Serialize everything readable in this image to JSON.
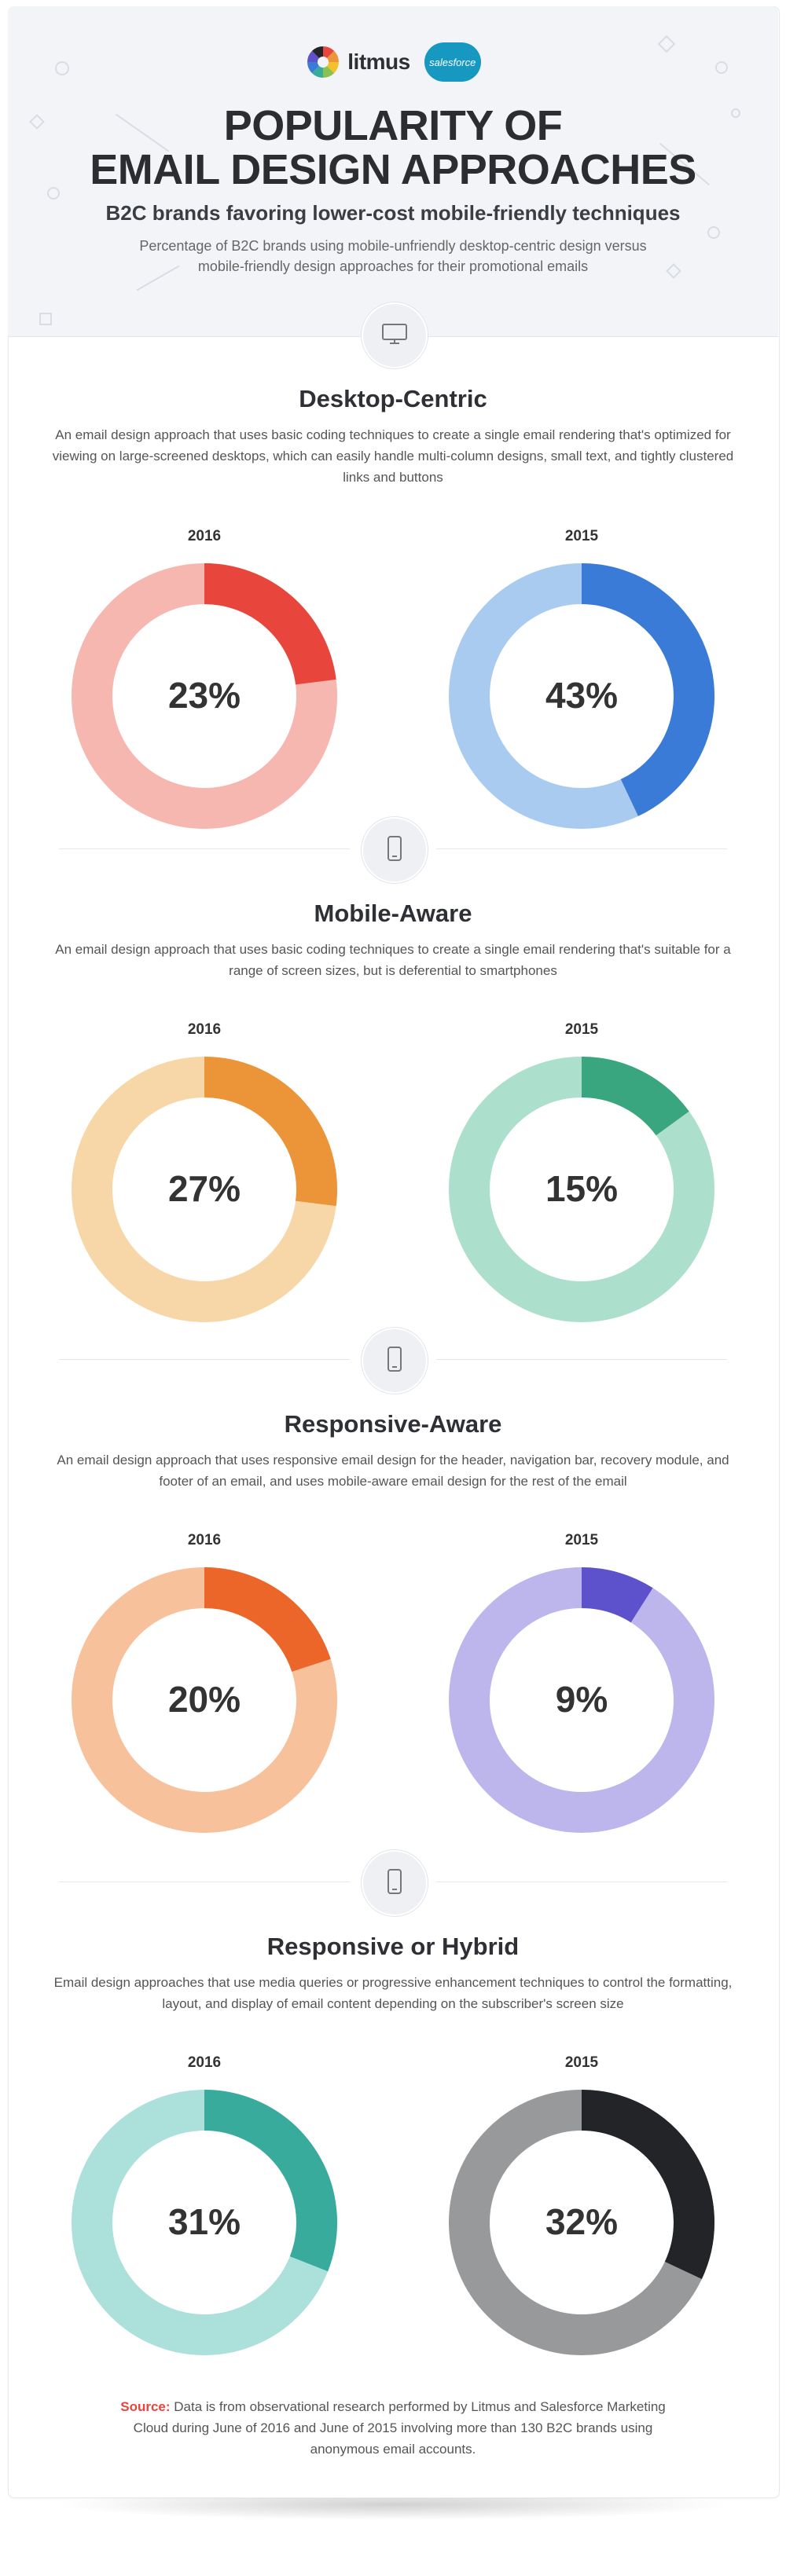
{
  "header": {
    "litmus_label": "litmus",
    "salesforce_label": "salesforce",
    "title_line1": "POPULARITY OF",
    "title_line2": "EMAIL DESIGN APPROACHES",
    "subtitle": "B2C brands favoring lower-cost mobile-friendly techniques",
    "description": "Percentage of B2C brands using mobile-unfriendly desktop-centric design versus mobile-friendly design approaches for their promotional emails"
  },
  "sections": [
    {
      "title": "Desktop-Centric",
      "icon": "desktop-icon",
      "description": "An email design approach that uses basic coding techniques to create a single email rendering that's optimized for viewing on large-screened desktops, which can easily handle multi-column designs, small text, and tightly clustered links and buttons",
      "left": {
        "year": "2016",
        "label": "23%",
        "value": 23,
        "color": "#e8453c",
        "track": "#f7b7b1"
      },
      "right": {
        "year": "2015",
        "label": "43%",
        "value": 43,
        "color": "#3a7bd8",
        "track": "#aacbf0"
      }
    },
    {
      "title": "Mobile-Aware",
      "icon": "mobile-icon",
      "description": "An email design approach that uses basic coding techniques to create a single email rendering that's suitable for a range of screen sizes, but is deferential to smartphones",
      "left": {
        "year": "2016",
        "label": "27%",
        "value": 27,
        "color": "#ec9438",
        "track": "#f7d7a8"
      },
      "right": {
        "year": "2015",
        "label": "15%",
        "value": 15,
        "color": "#3aa67f",
        "track": "#addfcd"
      }
    },
    {
      "title": "Responsive-Aware",
      "icon": "mobile-icon",
      "description": "An email design approach that uses responsive email design for the header, navigation bar, recovery module, and footer of an email, and uses mobile-aware email design for the rest of the email",
      "left": {
        "year": "2016",
        "label": "20%",
        "value": 20,
        "color": "#ec6529",
        "track": "#f7c19c"
      },
      "right": {
        "year": "2015",
        "label": "9%",
        "value": 9,
        "color": "#5d51cc",
        "track": "#bcb6ec"
      }
    },
    {
      "title": "Responsive or Hybrid",
      "icon": "mobile-icon",
      "description": "Email design approaches that use media queries or progressive enhancement techniques to control the formatting, layout, and display of email content depending on the subscriber's screen size",
      "left": {
        "year": "2016",
        "label": "31%",
        "value": 31,
        "color": "#39ab9c",
        "track": "#ace0db"
      },
      "right": {
        "year": "2015",
        "label": "32%",
        "value": 32,
        "color": "#222427",
        "track": "#97999b"
      }
    }
  ],
  "source": {
    "label": "Source:",
    "text": " Data is from observational research performed by Litmus and Salesforce Marketing Cloud during June of 2016 and June of 2015 involving more than 130 B2C brands using anonymous email accounts."
  },
  "chart_data": [
    {
      "type": "pie",
      "title": "Desktop-Centric",
      "categories": [
        "2016",
        "2015"
      ],
      "values": [
        23,
        43
      ]
    },
    {
      "type": "pie",
      "title": "Mobile-Aware",
      "categories": [
        "2016",
        "2015"
      ],
      "values": [
        27,
        15
      ]
    },
    {
      "type": "pie",
      "title": "Responsive-Aware",
      "categories": [
        "2016",
        "2015"
      ],
      "values": [
        20,
        9
      ]
    },
    {
      "type": "pie",
      "title": "Responsive or Hybrid",
      "categories": [
        "2016",
        "2015"
      ],
      "values": [
        31,
        32
      ]
    }
  ]
}
